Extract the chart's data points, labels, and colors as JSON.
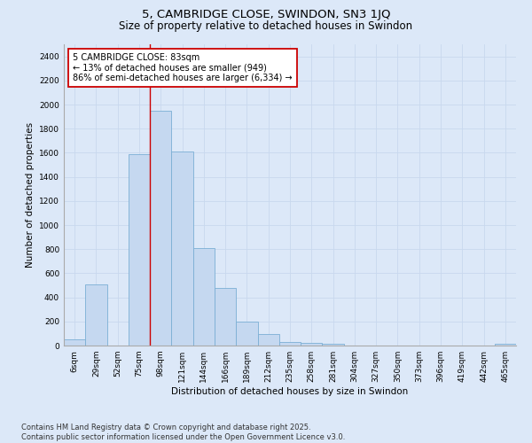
{
  "title": "5, CAMBRIDGE CLOSE, SWINDON, SN3 1JQ",
  "subtitle": "Size of property relative to detached houses in Swindon",
  "xlabel": "Distribution of detached houses by size in Swindon",
  "ylabel": "Number of detached properties",
  "footer_line1": "Contains HM Land Registry data © Crown copyright and database right 2025.",
  "footer_line2": "Contains public sector information licensed under the Open Government Licence v3.0.",
  "categories": [
    "6sqm",
    "29sqm",
    "52sqm",
    "75sqm",
    "98sqm",
    "121sqm",
    "144sqm",
    "166sqm",
    "189sqm",
    "212sqm",
    "235sqm",
    "258sqm",
    "281sqm",
    "304sqm",
    "327sqm",
    "350sqm",
    "373sqm",
    "396sqm",
    "419sqm",
    "442sqm",
    "465sqm"
  ],
  "values": [
    50,
    510,
    0,
    1590,
    1950,
    1610,
    810,
    480,
    195,
    95,
    30,
    20,
    15,
    0,
    0,
    0,
    0,
    0,
    0,
    0,
    15
  ],
  "bar_color": "#c5d8f0",
  "bar_edge_color": "#7bafd4",
  "grid_color": "#c8d8ee",
  "background_color": "#dce8f8",
  "annotation_box_color": "#cc0000",
  "vline_color": "#cc0000",
  "vline_x_index": 3.5,
  "annotation_text_line1": "5 CAMBRIDGE CLOSE: 83sqm",
  "annotation_text_line2": "← 13% of detached houses are smaller (949)",
  "annotation_text_line3": "86% of semi-detached houses are larger (6,334) →",
  "ylim_max": 2500,
  "yticks": [
    0,
    200,
    400,
    600,
    800,
    1000,
    1200,
    1400,
    1600,
    1800,
    2000,
    2200,
    2400
  ],
  "title_fontsize": 9.5,
  "subtitle_fontsize": 8.5,
  "annotation_fontsize": 7.0,
  "tick_fontsize": 6.5,
  "label_fontsize": 7.5,
  "footer_fontsize": 6.0
}
